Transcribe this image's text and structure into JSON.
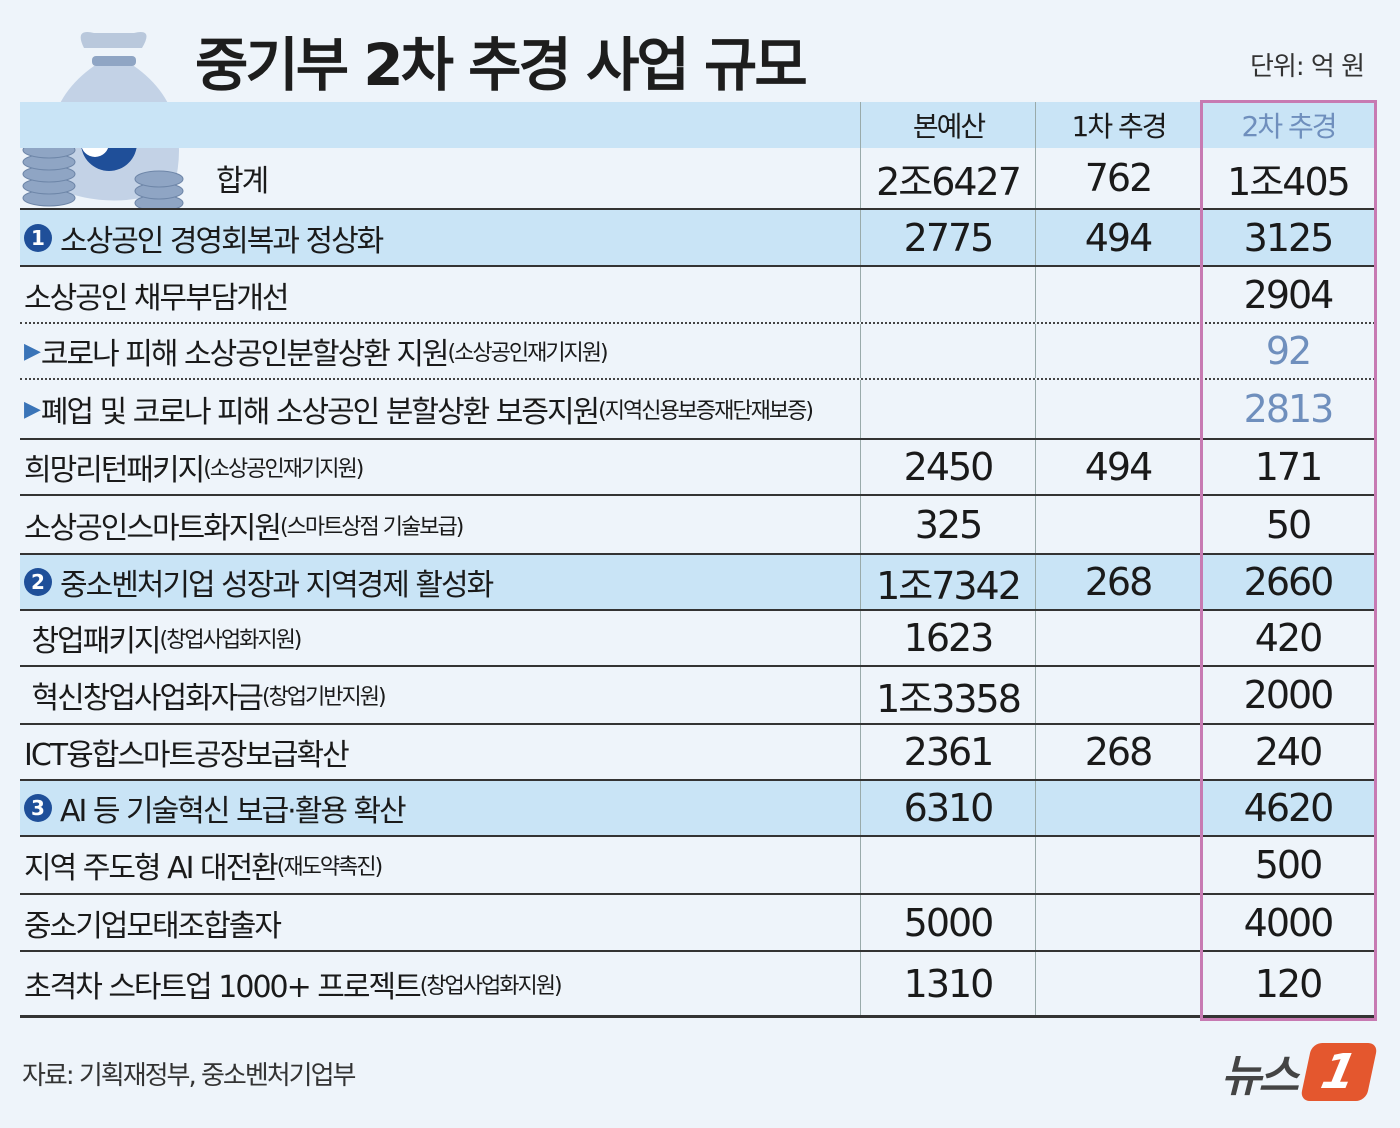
{
  "title": "중기부 2차 추경 사업 규모",
  "unit": "단위: 억 원",
  "source": "자료: 기획재정부, 중소벤처기업부",
  "logo": {
    "text": "뉴스",
    "mark": "1"
  },
  "colors": {
    "header_bg": "#c9e4f6",
    "highlight_border": "#c77ab2",
    "sub_value": "#6f8fbd",
    "badge": "#1f4f99"
  },
  "chart_data": {
    "type": "table",
    "columns": [
      "",
      "본예산",
      "1차 추경",
      "2차 추경"
    ],
    "rows": [
      {
        "kind": "total",
        "label": "합계",
        "sub": "",
        "values": [
          "2조6427",
          "762",
          "1조405"
        ]
      },
      {
        "kind": "section",
        "badge": "1",
        "label": "소상공인 경영회복과 정상화",
        "sub": "",
        "values": [
          "2775",
          "494",
          "3125"
        ]
      },
      {
        "kind": "item",
        "label": "소상공인 채무부담개선",
        "sub": "",
        "values": [
          "",
          "",
          "2904"
        ],
        "dotted": true
      },
      {
        "kind": "subitem",
        "label": "코로나 피해 소상공인분할상환 지원",
        "sub": "(소상공인재기지원)",
        "values": [
          "",
          "",
          "92"
        ],
        "dotted": true
      },
      {
        "kind": "subitem",
        "label": "폐업 및 코로나 피해 소상공인 분할상환 보증지원",
        "sub": "(지역신용보증재단재보증)",
        "values": [
          "",
          "",
          "2813"
        ]
      },
      {
        "kind": "item",
        "label": "희망리턴패키지",
        "sub": "(소상공인재기지원)",
        "values": [
          "2450",
          "494",
          "171"
        ]
      },
      {
        "kind": "item",
        "label": "소상공인스마트화지원",
        "sub": "(스마트상점 기술보급)",
        "values": [
          "325",
          "",
          "50"
        ]
      },
      {
        "kind": "section",
        "badge": "2",
        "label": "중소벤처기업 성장과 지역경제 활성화",
        "sub": "",
        "values": [
          "1조7342",
          "268",
          "2660"
        ]
      },
      {
        "kind": "item",
        "label": " 창업패키지",
        "sub": "(창업사업화지원)",
        "values": [
          "1623",
          "",
          "420"
        ]
      },
      {
        "kind": "item",
        "label": " 혁신창업사업화자금",
        "sub": "(창업기반지원)",
        "values": [
          "1조3358",
          "",
          "2000"
        ]
      },
      {
        "kind": "item",
        "label": "ICT융합스마트공장보급확산",
        "sub": "",
        "values": [
          "2361",
          "268",
          "240"
        ]
      },
      {
        "kind": "section",
        "badge": "3",
        "label": "AI 등 기술혁신 보급·활용 확산",
        "sub": "",
        "values": [
          "6310",
          "",
          "4620"
        ]
      },
      {
        "kind": "item",
        "label": "지역 주도형 AI 대전환",
        "sub": "(재도약촉진)",
        "values": [
          "",
          "",
          "500"
        ]
      },
      {
        "kind": "item",
        "label": "중소기업모태조합출자",
        "sub": "",
        "values": [
          "5000",
          "",
          "4000"
        ]
      },
      {
        "kind": "item",
        "label": "초격차 스타트업 1000+ 프로젝트",
        "sub": "(창업사업화지원)",
        "values": [
          "1310",
          "",
          "120"
        ]
      }
    ]
  }
}
